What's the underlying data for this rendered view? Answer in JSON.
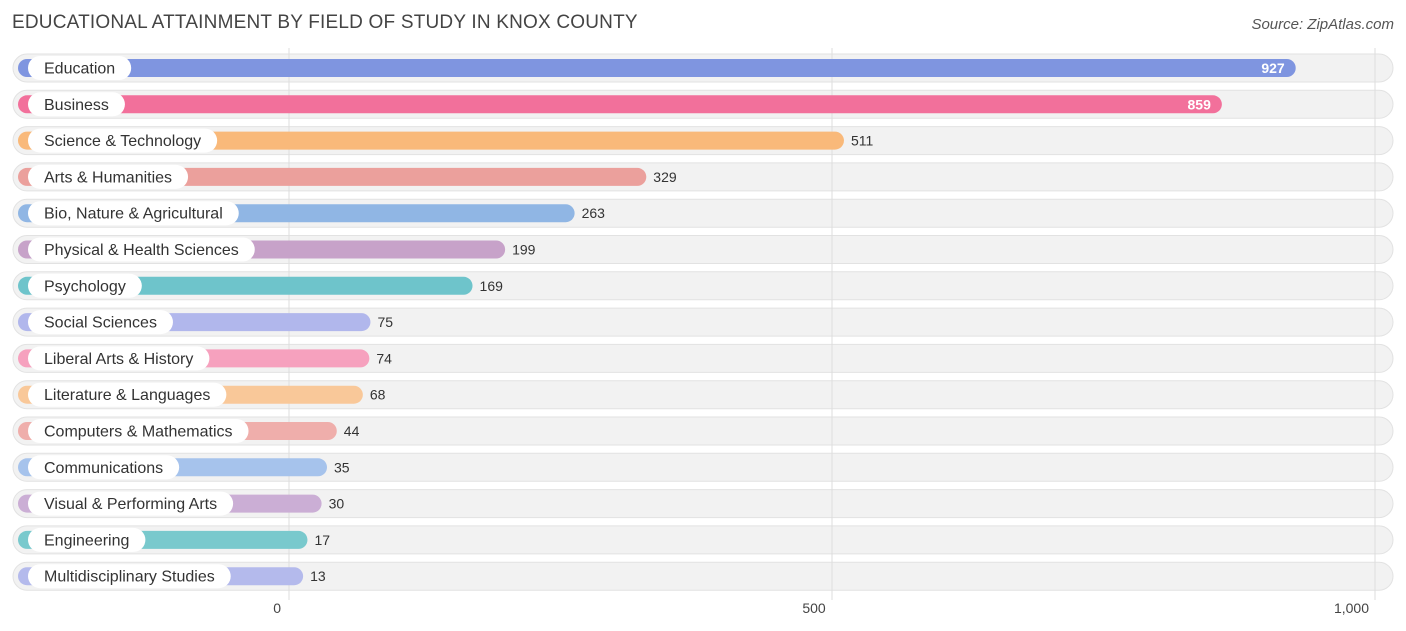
{
  "title": "EDUCATIONAL ATTAINMENT BY FIELD OF STUDY IN KNOX COUNTY",
  "source": "Source: ZipAtlas.com",
  "chart_data": {
    "type": "bar",
    "orientation": "horizontal",
    "title": "EDUCATIONAL ATTAINMENT BY FIELD OF STUDY IN KNOX COUNTY",
    "xlabel": "",
    "ylabel": "",
    "xlim": [
      0,
      1000
    ],
    "ticks": [
      0,
      500,
      1000
    ],
    "tick_labels": [
      "0",
      "500",
      "1,000"
    ],
    "grid": true,
    "categories": [
      "Education",
      "Business",
      "Science & Technology",
      "Arts & Humanities",
      "Bio, Nature & Agricultural",
      "Physical & Health Sciences",
      "Psychology",
      "Social Sciences",
      "Liberal Arts & History",
      "Literature & Languages",
      "Computers & Mathematics",
      "Communications",
      "Visual & Performing Arts",
      "Engineering",
      "Multidisciplinary Studies"
    ],
    "values": [
      927,
      859,
      511,
      329,
      263,
      199,
      169,
      75,
      74,
      68,
      44,
      35,
      30,
      17,
      13
    ],
    "colors": [
      "#7f95e0",
      "#f2709b",
      "#f9b97a",
      "#eba09c",
      "#90b6e4",
      "#c7a2c9",
      "#6ec4cb",
      "#b1b7ec",
      "#f6a1be",
      "#f9c899",
      "#efaeab",
      "#a6c3ec",
      "#cbaed5",
      "#79c9cd",
      "#b4baec"
    ]
  }
}
